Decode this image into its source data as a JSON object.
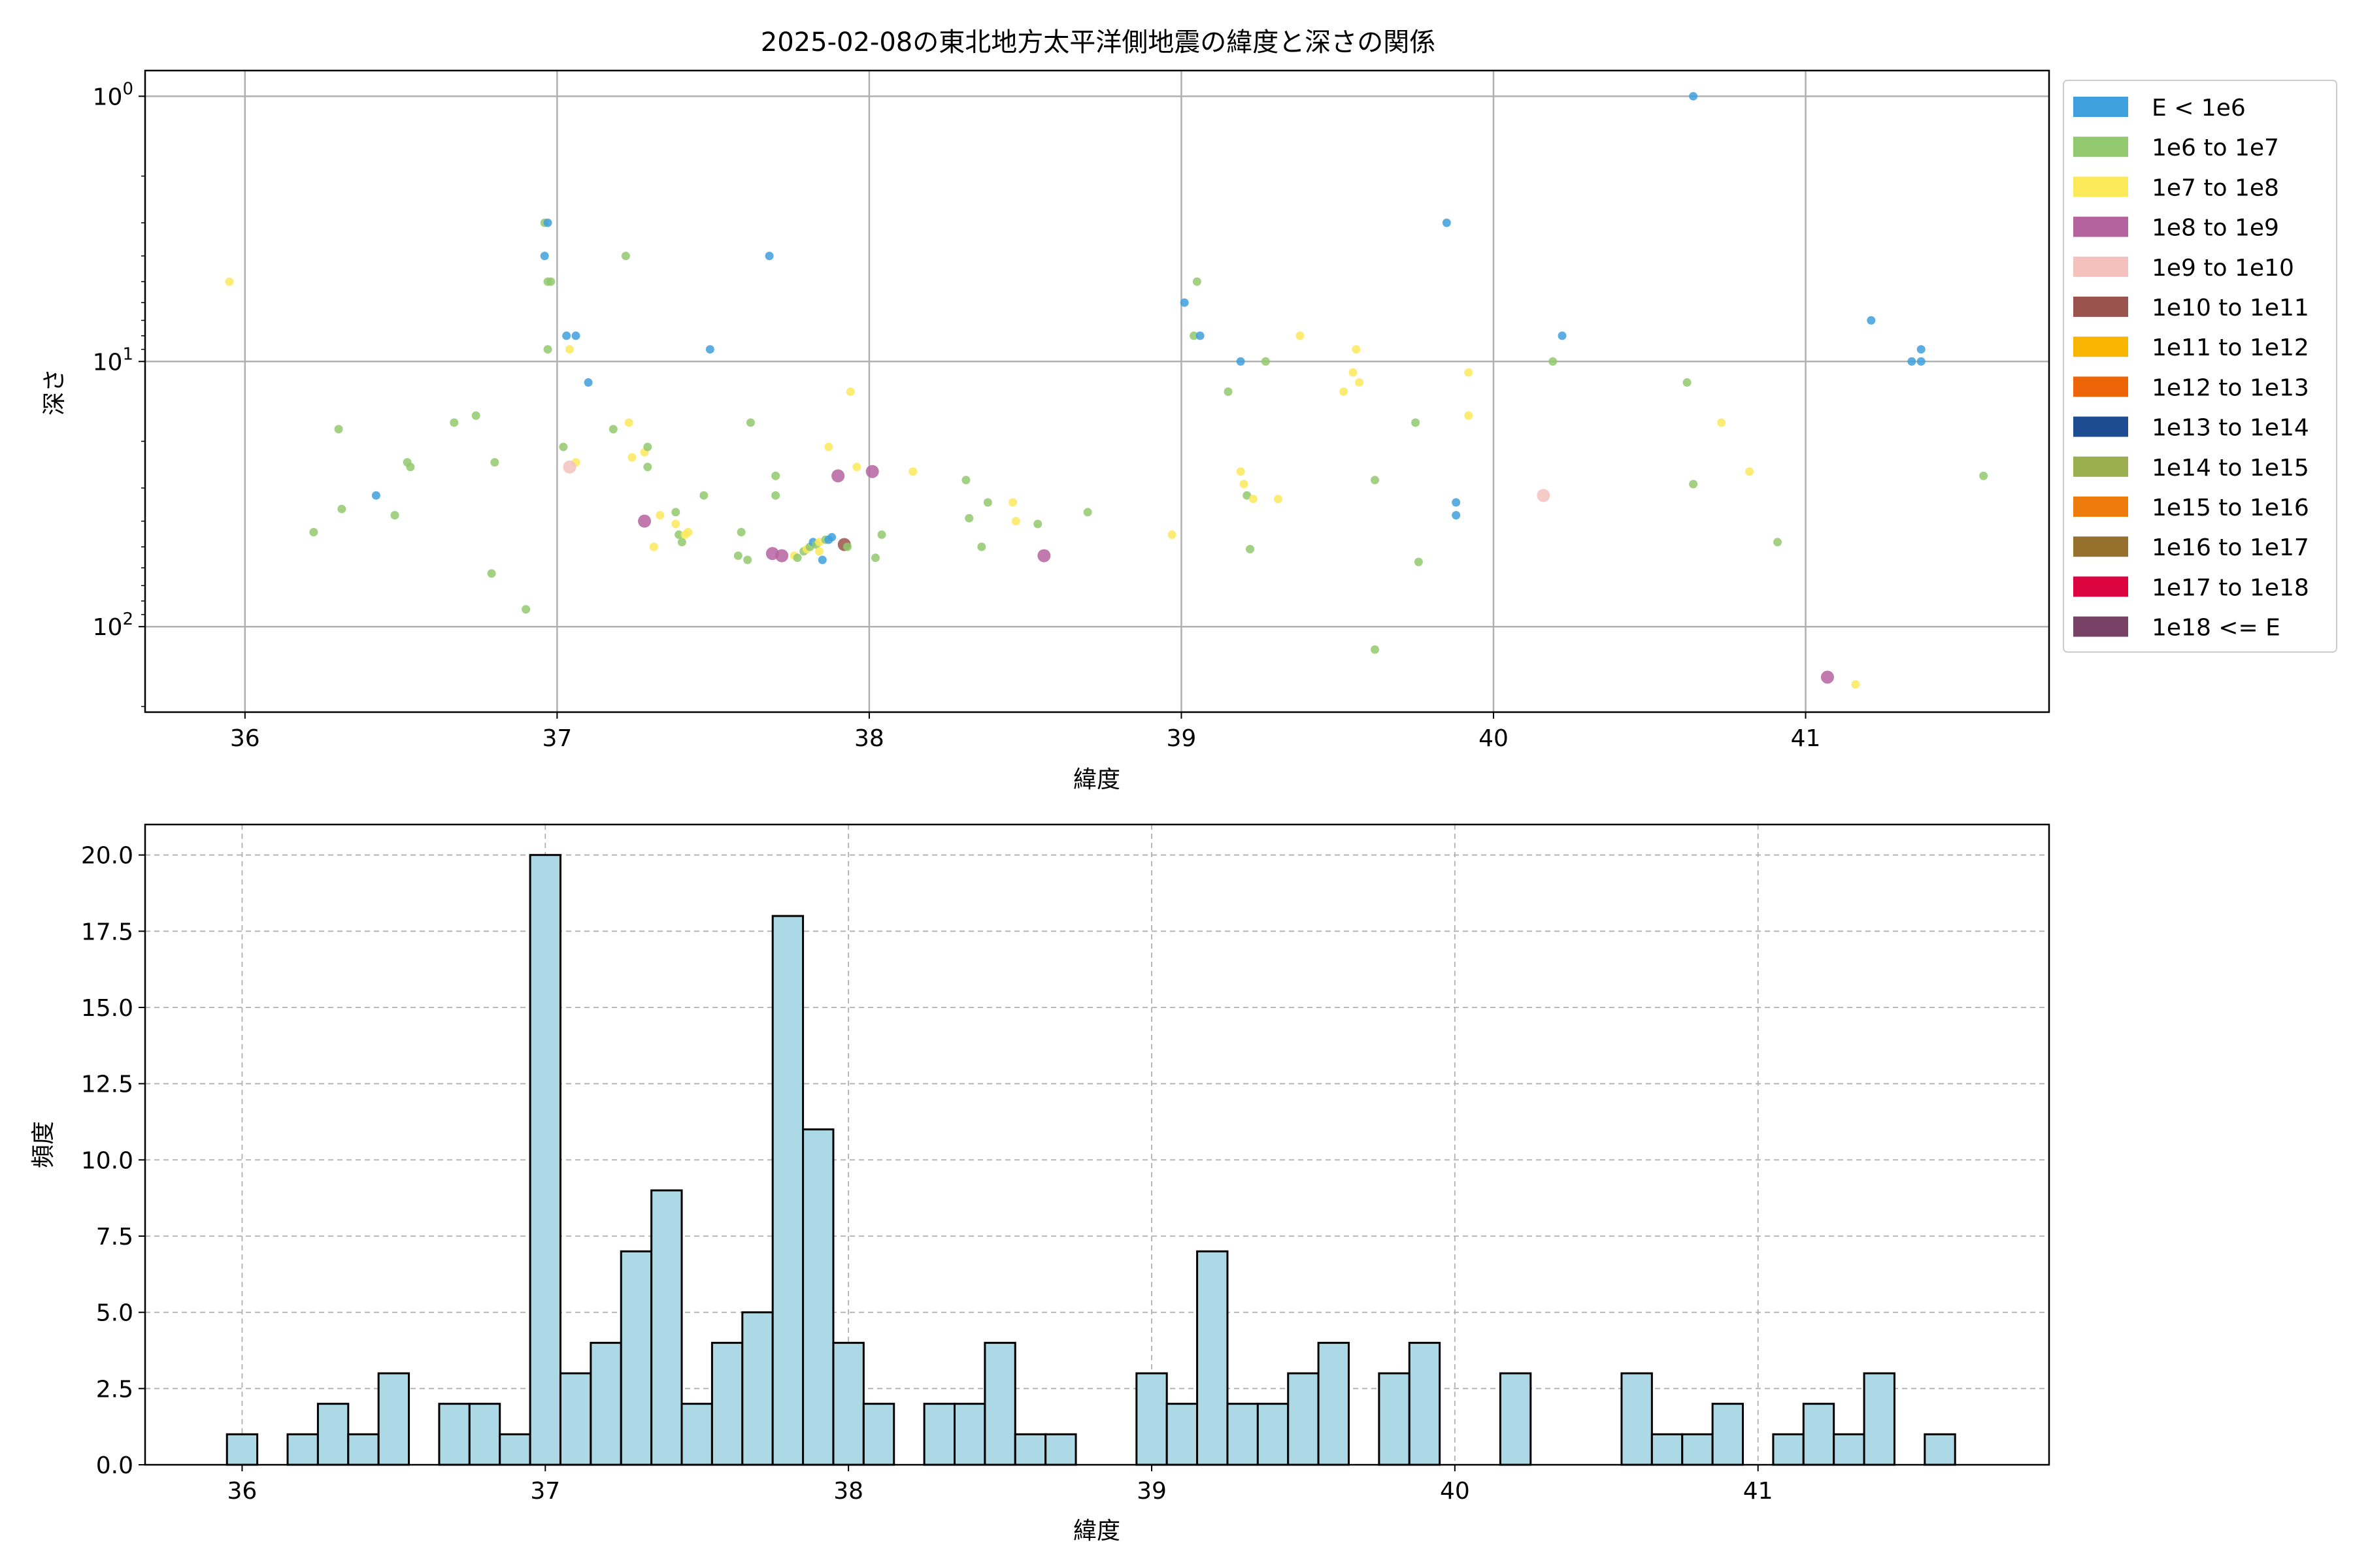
{
  "chart_data": [
    {
      "type": "scatter",
      "title": "2025-02-08の東北地方太平洋側地震の緯度と深さの関係",
      "xlabel": "緯度",
      "ylabel": "深さ",
      "xlim": [
        35.68,
        41.78
      ],
      "ylim": [
        210,
        0.8
      ],
      "y_scale": "log",
      "y_inverted": true,
      "grid": true,
      "x_ticks": [
        "36",
        "37",
        "38",
        "39",
        "40",
        "41"
      ],
      "y_ticks": [
        {
          "value": 1,
          "base": "10",
          "exp": "0"
        },
        {
          "value": 10,
          "base": "10",
          "exp": "1"
        },
        {
          "value": 100,
          "base": "10",
          "exp": "2"
        }
      ],
      "legend_position": "outside-right",
      "legend": [
        {
          "label": "E < 1e6",
          "color": "#3fa0dd"
        },
        {
          "label": "1e6 to 1e7",
          "color": "#92c96e"
        },
        {
          "label": "1e7 to 1e8",
          "color": "#fbe95a"
        },
        {
          "label": "1e8 to 1e9",
          "color": "#b5639f"
        },
        {
          "label": "1e9 to 1e10",
          "color": "#f4c1bc"
        },
        {
          "label": "1e10 to 1e11",
          "color": "#9a544d"
        },
        {
          "label": "1e11 to 1e12",
          "color": "#f8b602"
        },
        {
          "label": "1e12 to 1e13",
          "color": "#ee6509"
        },
        {
          "label": "1e13 to 1e14",
          "color": "#1e4c92"
        },
        {
          "label": "1e14 to 1e15",
          "color": "#9caf4f"
        },
        {
          "label": "1e15 to 1e16",
          "color": "#ee7c0d"
        },
        {
          "label": "1e16 to 1e17",
          "color": "#96702d"
        },
        {
          "label": "1e17 to 1e18",
          "color": "#dc043e"
        },
        {
          "label": "1e18 <= E",
          "color": "#784267"
        }
      ],
      "points": [
        [
          35.95,
          5,
          2
        ],
        [
          36.22,
          44,
          1
        ],
        [
          36.31,
          36,
          1
        ],
        [
          36.3,
          18,
          1
        ],
        [
          36.42,
          32,
          0
        ],
        [
          36.48,
          38,
          1
        ],
        [
          36.52,
          24,
          1
        ],
        [
          36.53,
          25,
          1
        ],
        [
          36.67,
          17,
          1
        ],
        [
          36.74,
          16,
          1
        ],
        [
          36.79,
          63,
          1
        ],
        [
          36.8,
          24,
          1
        ],
        [
          36.9,
          86,
          1
        ],
        [
          36.96,
          3,
          1
        ],
        [
          36.97,
          3,
          0
        ],
        [
          36.96,
          4,
          0
        ],
        [
          36.97,
          5,
          1
        ],
        [
          36.98,
          5,
          1
        ],
        [
          36.97,
          9,
          1
        ],
        [
          37.02,
          21,
          1
        ],
        [
          37.03,
          8,
          0
        ],
        [
          37.04,
          9,
          2
        ],
        [
          37.06,
          8,
          0
        ],
        [
          37.06,
          24,
          2
        ],
        [
          37.04,
          25,
          4
        ],
        [
          37.1,
          12,
          0
        ],
        [
          37.18,
          18,
          1
        ],
        [
          37.22,
          4,
          1
        ],
        [
          37.23,
          17,
          2
        ],
        [
          37.24,
          23,
          2
        ],
        [
          37.28,
          22,
          2
        ],
        [
          37.29,
          25,
          1
        ],
        [
          37.29,
          21,
          1
        ],
        [
          37.28,
          40,
          3
        ],
        [
          37.31,
          50,
          2
        ],
        [
          37.33,
          38,
          2
        ],
        [
          37.38,
          37,
          1
        ],
        [
          37.39,
          45,
          1
        ],
        [
          37.4,
          48,
          1
        ],
        [
          37.41,
          45,
          2
        ],
        [
          37.42,
          44,
          2
        ],
        [
          37.38,
          41,
          2
        ],
        [
          37.47,
          32,
          1
        ],
        [
          37.49,
          9,
          0
        ],
        [
          37.58,
          54,
          1
        ],
        [
          37.59,
          44,
          1
        ],
        [
          37.61,
          56,
          1
        ],
        [
          37.62,
          17,
          1
        ],
        [
          37.68,
          4,
          0
        ],
        [
          37.69,
          53,
          3
        ],
        [
          37.7,
          32,
          1
        ],
        [
          37.7,
          27,
          1
        ],
        [
          37.72,
          54,
          3
        ],
        [
          37.76,
          54,
          2
        ],
        [
          37.77,
          55,
          1
        ],
        [
          37.79,
          52,
          1
        ],
        [
          37.8,
          51,
          2
        ],
        [
          37.81,
          50,
          1
        ],
        [
          37.82,
          48,
          0
        ],
        [
          37.83,
          49,
          1
        ],
        [
          37.84,
          48,
          2
        ],
        [
          37.84,
          52,
          2
        ],
        [
          37.85,
          56,
          0
        ],
        [
          37.86,
          47,
          1
        ],
        [
          37.87,
          47,
          0
        ],
        [
          37.88,
          46,
          0
        ],
        [
          37.87,
          21,
          2
        ],
        [
          37.9,
          27,
          3
        ],
        [
          37.92,
          49,
          5
        ],
        [
          37.93,
          50,
          1
        ],
        [
          37.94,
          13,
          2
        ],
        [
          37.96,
          25,
          2
        ],
        [
          38.01,
          26,
          3
        ],
        [
          38.02,
          55,
          1
        ],
        [
          38.04,
          45,
          1
        ],
        [
          38.14,
          26,
          2
        ],
        [
          38.31,
          28,
          1
        ],
        [
          38.32,
          39,
          1
        ],
        [
          38.36,
          50,
          1
        ],
        [
          38.38,
          34,
          1
        ],
        [
          38.46,
          34,
          2
        ],
        [
          38.47,
          40,
          2
        ],
        [
          38.54,
          41,
          1
        ],
        [
          38.56,
          54,
          3
        ],
        [
          38.7,
          37,
          1
        ],
        [
          38.97,
          45,
          2
        ],
        [
          39.01,
          6,
          0
        ],
        [
          39.04,
          8,
          1
        ],
        [
          39.05,
          5,
          1
        ],
        [
          39.06,
          8,
          0
        ],
        [
          39.15,
          13,
          1
        ],
        [
          39.19,
          26,
          2
        ],
        [
          39.19,
          10,
          0
        ],
        [
          39.2,
          29,
          2
        ],
        [
          39.21,
          32,
          1
        ],
        [
          39.22,
          51,
          1
        ],
        [
          39.23,
          33,
          2
        ],
        [
          39.27,
          10,
          1
        ],
        [
          39.31,
          33,
          2
        ],
        [
          39.38,
          8,
          2
        ],
        [
          39.52,
          13,
          2
        ],
        [
          39.55,
          11,
          2
        ],
        [
          39.56,
          9,
          2
        ],
        [
          39.57,
          12,
          2
        ],
        [
          39.62,
          28,
          1
        ],
        [
          39.62,
          122,
          1
        ],
        [
          39.75,
          17,
          1
        ],
        [
          39.76,
          57,
          1
        ],
        [
          39.85,
          3,
          0
        ],
        [
          39.88,
          34,
          0
        ],
        [
          39.88,
          38,
          0
        ],
        [
          39.92,
          11,
          2
        ],
        [
          39.92,
          16,
          2
        ],
        [
          40.16,
          32,
          4
        ],
        [
          40.19,
          10,
          1
        ],
        [
          40.22,
          8,
          0
        ],
        [
          40.62,
          12,
          1
        ],
        [
          40.64,
          29,
          1
        ],
        [
          40.64,
          1,
          0
        ],
        [
          40.73,
          17,
          2
        ],
        [
          40.82,
          26,
          2
        ],
        [
          40.91,
          48,
          1
        ],
        [
          41.07,
          155,
          3
        ],
        [
          41.16,
          165,
          2
        ],
        [
          41.21,
          7,
          0
        ],
        [
          41.34,
          10,
          0
        ],
        [
          41.37,
          10,
          0
        ],
        [
          41.37,
          9,
          0
        ],
        [
          41.57,
          27,
          1
        ]
      ]
    },
    {
      "type": "bar",
      "subtype": "histogram",
      "xlabel": "緯度",
      "ylabel": "頻度",
      "xlim": [
        35.68,
        41.96
      ],
      "ylim": [
        0,
        21
      ],
      "grid": true,
      "grid_style": "dashed",
      "bar_color": "#add8e6",
      "edge_color": "#000000",
      "bin_start": 35.95,
      "bin_width": 0.1,
      "values": [
        1,
        0,
        1,
        2,
        1,
        3,
        0,
        2,
        2,
        1,
        20,
        3,
        4,
        7,
        9,
        2,
        4,
        5,
        18,
        11,
        4,
        2,
        0,
        2,
        2,
        4,
        1,
        1,
        0,
        0,
        3,
        2,
        7,
        2,
        2,
        3,
        4,
        0,
        3,
        4,
        0,
        0,
        3,
        0,
        0,
        0,
        3,
        1,
        1,
        2,
        0,
        1,
        2,
        1,
        3,
        0,
        1
      ],
      "x_ticks": [
        "36",
        "37",
        "38",
        "39",
        "40",
        "41"
      ],
      "y_ticks": [
        "0.0",
        "2.5",
        "5.0",
        "7.5",
        "10.0",
        "12.5",
        "15.0",
        "17.5",
        "20.0"
      ]
    }
  ]
}
